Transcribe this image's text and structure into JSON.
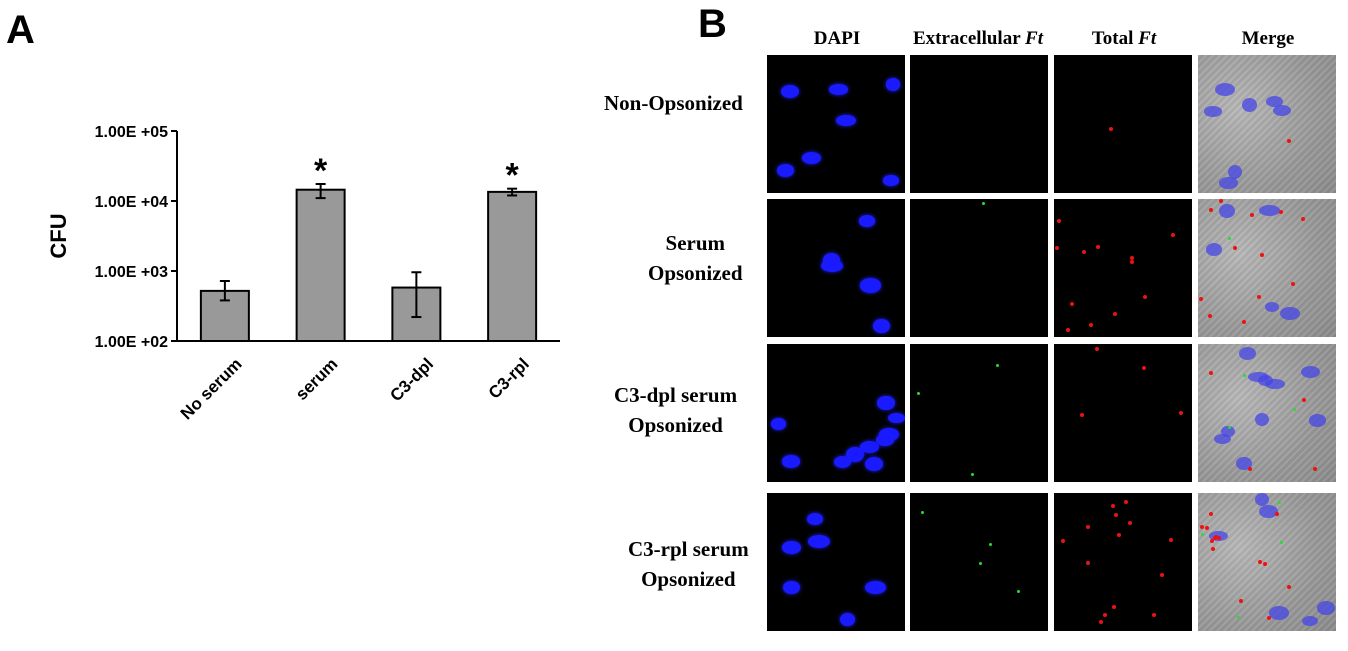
{
  "panels": {
    "a_label": "A",
    "b_label": "B"
  },
  "chart_data": {
    "type": "bar",
    "scale": "log",
    "categories": [
      "No serum",
      "serum",
      "C3-dpl",
      "C3-rpl"
    ],
    "values": [
      520,
      14500,
      580,
      13500
    ],
    "error_low": [
      380,
      11000,
      220,
      12000
    ],
    "error_high": [
      720,
      17500,
      960,
      15000
    ],
    "significance": [
      "",
      "*",
      "",
      "*"
    ],
    "ylabel": "CFU",
    "ylim": [
      100,
      100000
    ],
    "yticks": [
      {
        "value": 100,
        "label": "1.00E +02"
      },
      {
        "value": 1000,
        "label": "1.00E +03"
      },
      {
        "value": 10000,
        "label": "1.00E +04"
      },
      {
        "value": 100000,
        "label": "1.00E +05"
      }
    ],
    "bar_color": "#999999"
  },
  "microscopy": {
    "columns": [
      {
        "text": "DAPI",
        "italic": ""
      },
      {
        "text": "Extracellular ",
        "italic": "Ft"
      },
      {
        "text": "Total ",
        "italic": "Ft"
      },
      {
        "text": "Merge",
        "italic": ""
      }
    ],
    "rows": [
      {
        "line1": "Non-Opsonized",
        "line2": ""
      },
      {
        "line1": "Serum",
        "line2": "Opsonized"
      },
      {
        "line1": "C3-dpl serum",
        "line2": "Opsonized"
      },
      {
        "line1": "C3-rpl serum",
        "line2": "Opsonized"
      }
    ]
  }
}
